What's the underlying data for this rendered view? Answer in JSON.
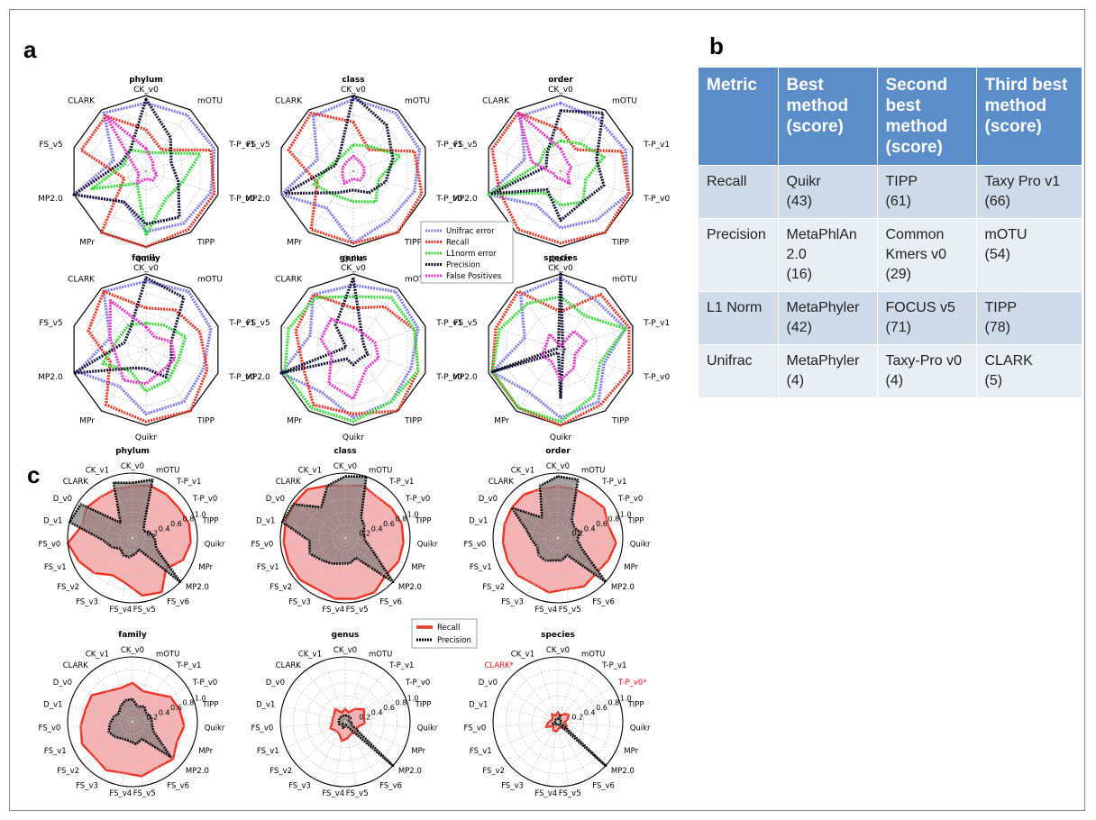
{
  "panel_labels": {
    "a": "a",
    "b": "b",
    "c": "c"
  },
  "table": {
    "headers": [
      "Metric",
      "Best method (score)",
      "Second best method (score)",
      "Third best method (score)"
    ],
    "rows": [
      {
        "metric": "Recall",
        "cells": [
          [
            "Quikr",
            "(43)"
          ],
          [
            "TIPP",
            "(61)"
          ],
          [
            "Taxy Pro v1",
            "(66)"
          ]
        ]
      },
      {
        "metric": "Precision",
        "cells": [
          [
            "MetaPhlAn",
            "2.0",
            "(16)"
          ],
          [
            "Common",
            "Kmers v0",
            "(29)"
          ],
          [
            "mOTU",
            "(54)"
          ]
        ]
      },
      {
        "metric": "L1 Norm",
        "cells": [
          [
            "MetaPhyler",
            "(42)"
          ],
          [
            "FOCUS v5",
            "(71)"
          ],
          [
            "TIPP",
            "(78)"
          ]
        ]
      },
      {
        "metric": "Unifrac",
        "cells": [
          [
            "MetaPhyler",
            "(4)"
          ],
          [
            "Taxy-Pro v0",
            "(4)"
          ],
          [
            "CLARK",
            "(5)"
          ]
        ]
      }
    ]
  },
  "colors": {
    "unifrac": "#7b7bf0",
    "recall": "#ee3322",
    "l1norm": "#33dd33",
    "precision": "#111133",
    "false_positives": "#ee33cc",
    "recall_fill": "#f4a6a6",
    "precision_fill": "#807878",
    "highlight_label": "#ee1111"
  },
  "chart_data": [
    {
      "type": "radar",
      "panel": "a",
      "axes": [
        "CK_v0",
        "mOTU",
        "T-P_v1",
        "T-P_v0",
        "TIPP",
        "Quikr",
        "MPr",
        "MP2.0",
        "FS_v5",
        "CLARK"
      ],
      "scale": "normalized rank 0–1 (outer = higher)",
      "legend": {
        "entries": [
          "Unifrac error",
          "Recall",
          "L1norm error",
          "Precision",
          "False Positives"
        ],
        "placement": "center-right"
      },
      "charts": [
        {
          "title": "phylum",
          "series": [
            {
              "name": "Unifrac error",
              "values": [
                0.9,
                0.92,
                0.95,
                0.9,
                0.85,
                0.8,
                0.5,
                1.0,
                0.45,
                0.95
              ]
            },
            {
              "name": "Recall",
              "values": [
                0.55,
                0.35,
                0.9,
                0.95,
                0.95,
                1.0,
                1.0,
                0.3,
                0.9,
                0.9
              ]
            },
            {
              "name": "L1norm error",
              "values": [
                0.25,
                0.3,
                0.75,
                0.5,
                0.45,
                0.85,
                0.2,
                0.75,
                0.3,
                0.35
              ]
            },
            {
              "name": "Precision",
              "values": [
                0.95,
                0.55,
                0.35,
                0.45,
                0.75,
                0.7,
                0.5,
                1.0,
                0.35,
                0.35
              ]
            },
            {
              "name": "False Positives",
              "values": [
                0.3,
                0.15,
                0.1,
                0.15,
                0.15,
                0.1,
                0.2,
                0.1,
                0.15,
                0.9
              ]
            }
          ]
        },
        {
          "title": "class",
          "series": [
            {
              "name": "Unifrac error",
              "values": [
                0.95,
                0.95,
                0.92,
                0.85,
                0.8,
                0.95,
                0.6,
                1.0,
                0.5,
                0.9
              ]
            },
            {
              "name": "Recall",
              "values": [
                0.65,
                0.35,
                0.85,
                0.95,
                1.0,
                0.95,
                0.95,
                0.5,
                0.9,
                0.95
              ]
            },
            {
              "name": "L1norm error",
              "values": [
                0.35,
                0.4,
                0.65,
                0.35,
                0.5,
                0.4,
                0.4,
                0.55,
                0.3,
                0.25
              ]
            },
            {
              "name": "Precision",
              "values": [
                1.0,
                0.75,
                0.55,
                0.45,
                0.35,
                0.25,
                0.35,
                0.95,
                0.25,
                0.3
              ]
            },
            {
              "name": "False Positives",
              "values": [
                0.2,
                0.15,
                0.15,
                0.15,
                0.15,
                0.1,
                0.2,
                0.15,
                0.15,
                0.15
              ]
            }
          ]
        },
        {
          "title": "order",
          "series": [
            {
              "name": "Unifrac error",
              "values": [
                0.9,
                0.85,
                0.9,
                0.95,
                0.8,
                0.75,
                0.55,
                1.0,
                0.5,
                0.9
              ]
            },
            {
              "name": "Recall",
              "values": [
                0.55,
                0.35,
                0.85,
                0.95,
                1.0,
                0.95,
                0.95,
                0.85,
                0.95,
                0.95
              ]
            },
            {
              "name": "L1norm error",
              "values": [
                0.4,
                0.45,
                0.6,
                0.35,
                0.5,
                0.45,
                0.35,
                1.0,
                0.3,
                0.35
              ]
            },
            {
              "name": "Precision",
              "values": [
                0.8,
                0.95,
                0.5,
                0.6,
                0.5,
                0.65,
                0.3,
                0.95,
                0.2,
                0.3
              ]
            },
            {
              "name": "False Positives",
              "values": [
                0.3,
                0.15,
                0.15,
                0.1,
                0.2,
                0.1,
                0.1,
                0.1,
                0.4,
                0.95
              ]
            }
          ]
        },
        {
          "title": "family",
          "series": [
            {
              "name": "Unifrac error",
              "values": [
                0.9,
                0.95,
                0.9,
                0.8,
                0.85,
                0.85,
                0.6,
                0.95,
                0.5,
                0.95
              ]
            },
            {
              "name": "Recall",
              "values": [
                0.55,
                0.65,
                0.75,
                0.85,
                1.0,
                0.95,
                0.9,
                0.5,
                0.8,
                0.95
              ]
            },
            {
              "name": "L1norm error",
              "values": [
                0.35,
                0.4,
                0.55,
                0.45,
                0.5,
                0.55,
                0.35,
                0.6,
                0.4,
                0.4
              ]
            },
            {
              "name": "Precision",
              "values": [
                0.95,
                0.85,
                0.35,
                0.35,
                0.45,
                0.25,
                0.3,
                1.0,
                0.3,
                0.35
              ]
            },
            {
              "name": "False Positives",
              "values": [
                0.3,
                0.2,
                0.35,
                0.4,
                0.35,
                0.45,
                0.5,
                0.4,
                0.5,
                0.8
              ]
            }
          ]
        },
        {
          "title": "genus",
          "series": [
            {
              "name": "Unifrac error",
              "values": [
                0.85,
                0.95,
                0.9,
                0.8,
                0.85,
                0.9,
                0.7,
                1.0,
                0.6,
                0.9
              ]
            },
            {
              "name": "Recall",
              "values": [
                0.55,
                0.7,
                0.85,
                0.9,
                1.0,
                0.85,
                0.9,
                0.7,
                0.8,
                0.9
              ]
            },
            {
              "name": "L1norm error",
              "values": [
                0.7,
                0.85,
                0.85,
                0.9,
                0.85,
                0.95,
                0.95,
                0.95,
                0.9,
                0.85
              ]
            },
            {
              "name": "Precision",
              "values": [
                0.95,
                0.2,
                0.15,
                0.2,
                0.15,
                0.2,
                0.15,
                1.0,
                0.1,
                0.4
              ]
            },
            {
              "name": "False Positives",
              "values": [
                0.3,
                0.25,
                0.3,
                0.35,
                0.3,
                0.65,
                0.55,
                0.3,
                0.45,
                0.5
              ]
            }
          ]
        },
        {
          "title": "species",
          "series": [
            {
              "name": "Unifrac error",
              "values": [
                0.95,
                0.8,
                0.9,
                0.6,
                0.85,
                0.9,
                0.7,
                0.95,
                0.5,
                0.9
              ]
            },
            {
              "name": "Recall",
              "values": [
                0.5,
                0.9,
                0.95,
                0.95,
                0.9,
                1.0,
                0.95,
                0.95,
                0.9,
                0.95
              ]
            },
            {
              "name": "L1norm error",
              "values": [
                0.7,
                0.55,
                0.9,
                0.55,
                0.75,
                0.95,
                0.95,
                0.95,
                0.85,
                0.75
              ]
            },
            {
              "name": "Precision",
              "values": [
                1.0,
                0.05,
                0.05,
                0.05,
                0.05,
                0.65,
                0.05,
                0.95,
                0.05,
                0.05
              ]
            },
            {
              "name": "False Positives",
              "values": [
                0.05,
                0.3,
                0.35,
                0.2,
                0.3,
                0.4,
                0.2,
                0.25,
                0.2,
                0.25
              ]
            }
          ]
        }
      ]
    },
    {
      "type": "radar",
      "panel": "c",
      "axes": [
        "CK_v0",
        "mOTU",
        "T-P_v1",
        "T-P_v0",
        "TIPP",
        "Quikr",
        "MPr",
        "MP2.0",
        "FS_v6",
        "FS_v5",
        "FS_v4",
        "FS_v3",
        "FS_v2",
        "FS_v1",
        "FS_v0",
        "D_v1",
        "D_v0",
        "CLARK",
        "CK_v1"
      ],
      "rlim": [
        0,
        1.0
      ],
      "rticks": [
        "0.2",
        "0.4",
        "0.6",
        "0.8",
        "1.0"
      ],
      "legend": {
        "entries": [
          "Recall",
          "Precision"
        ],
        "placement": "center-right"
      },
      "charts": [
        {
          "title": "phylum",
          "highlight": [],
          "series": [
            {
              "name": "Recall",
              "values": [
                0.8,
                0.85,
                0.85,
                0.85,
                0.9,
                0.9,
                0.85,
                0.7,
                0.95,
                0.9,
                0.7,
                0.65,
                0.8,
                0.9,
                1.0,
                0.8,
                0.85,
                0.8,
                0.8
              ]
            },
            {
              "name": "Precision",
              "values": [
                0.85,
                0.95,
                0.3,
                0.2,
                0.3,
                0.35,
                0.4,
                1.0,
                0.2,
                0.25,
                0.3,
                0.3,
                0.25,
                0.35,
                0.45,
                1.0,
                0.95,
                0.3,
                0.9
              ]
            }
          ]
        },
        {
          "title": "class",
          "highlight": [],
          "series": [
            {
              "name": "Recall",
              "values": [
                0.8,
                0.85,
                0.8,
                0.85,
                0.9,
                0.9,
                0.9,
                0.85,
                0.95,
                0.95,
                0.95,
                0.9,
                0.95,
                0.95,
                0.95,
                0.95,
                0.95,
                0.95,
                0.85
              ]
            },
            {
              "name": "Precision",
              "values": [
                0.95,
                1.0,
                0.4,
                0.35,
                0.3,
                0.3,
                0.45,
                1.0,
                0.35,
                0.4,
                0.4,
                0.45,
                0.5,
                0.6,
                0.55,
                1.0,
                0.95,
                0.6,
                0.85
              ]
            }
          ]
        },
        {
          "title": "order",
          "highlight": [],
          "series": [
            {
              "name": "Recall",
              "values": [
                0.8,
                0.8,
                0.8,
                0.85,
                0.8,
                0.9,
                0.85,
                0.8,
                0.85,
                0.8,
                0.85,
                0.8,
                0.85,
                0.85,
                0.85,
                0.85,
                0.85,
                0.85,
                0.8
              ]
            },
            {
              "name": "Precision",
              "values": [
                0.95,
                0.95,
                0.35,
                0.3,
                0.35,
                0.3,
                0.4,
                1.0,
                0.3,
                0.35,
                0.35,
                0.4,
                0.4,
                0.35,
                0.4,
                0.5,
                0.85,
                0.4,
                0.85
              ]
            }
          ]
        },
        {
          "title": "family",
          "highlight": [],
          "series": [
            {
              "name": "Recall",
              "values": [
                0.6,
                0.5,
                0.55,
                0.7,
                0.75,
                0.8,
                0.75,
                0.85,
                0.8,
                0.85,
                0.8,
                0.85,
                0.8,
                0.85,
                0.8,
                0.75,
                0.75,
                0.6,
                0.55
              ]
            },
            {
              "name": "Precision",
              "values": [
                0.35,
                0.25,
                0.3,
                0.25,
                0.3,
                0.3,
                0.35,
                0.8,
                0.3,
                0.35,
                0.3,
                0.3,
                0.35,
                0.4,
                0.35,
                0.3,
                0.25,
                0.3,
                0.35
              ]
            }
          ]
        },
        {
          "title": "genus",
          "highlight": [],
          "series": [
            {
              "name": "Recall",
              "values": [
                0.2,
                0.15,
                0.25,
                0.35,
                0.3,
                0.3,
                0.2,
                0.25,
                0.2,
                0.25,
                0.3,
                0.2,
                0.2,
                0.25,
                0.2,
                0.2,
                0.2,
                0.25,
                0.15
              ]
            },
            {
              "name": "Precision",
              "values": [
                0.1,
                0.1,
                0.1,
                0.1,
                0.05,
                0.1,
                0.1,
                1.0,
                0.1,
                0.05,
                0.1,
                0.1,
                0.05,
                0.1,
                0.1,
                0.1,
                0.1,
                0.1,
                0.1
              ]
            }
          ]
        },
        {
          "title": "species",
          "highlight": [
            "CLARK*",
            "T-P_v0*"
          ],
          "series": [
            {
              "name": "Recall",
              "values": [
                0.15,
                0.1,
                0.15,
                0.2,
                0.15,
                0.1,
                0.15,
                0.15,
                0.1,
                0.1,
                0.15,
                0.15,
                0.1,
                0.2,
                0.15,
                0.1,
                0.1,
                0.15,
                0.1
              ]
            },
            {
              "name": "Precision",
              "values": [
                0.05,
                0.1,
                0.05,
                0.05,
                0.05,
                0.05,
                0.05,
                1.0,
                0.05,
                0.05,
                0.05,
                0.05,
                0.05,
                0.1,
                0.05,
                0.05,
                0.05,
                0.05,
                0.05
              ]
            }
          ]
        }
      ]
    }
  ]
}
